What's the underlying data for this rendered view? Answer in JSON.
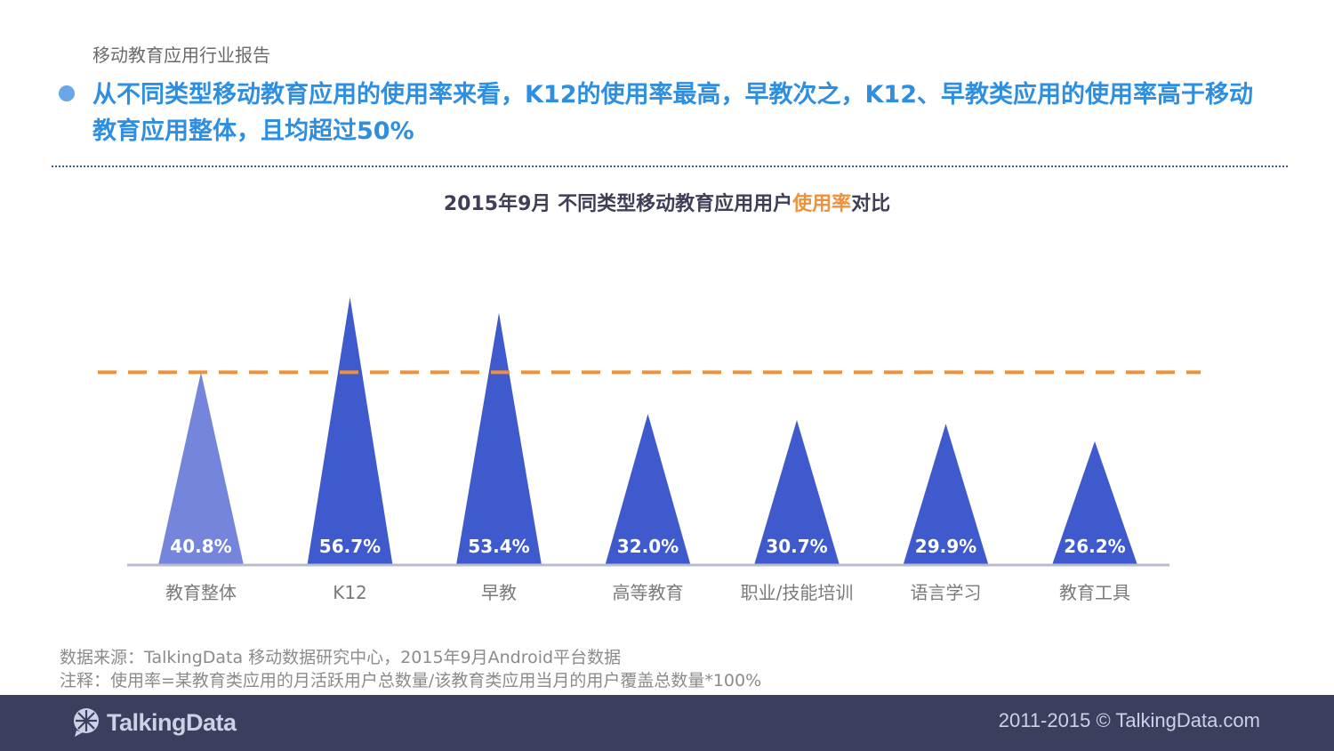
{
  "header": {
    "report_label": "移动教育应用行业报告",
    "headline": "从不同类型移动教育应用的使用率来看，K12的使用率最高，早教次之，K12、早教类应用的使用率高于移动教育应用整体，且均超过50%"
  },
  "chart_data": {
    "type": "bar",
    "shape": "triangle",
    "title_prefix": "2015年9月  不同类型移动教育应用用户",
    "title_highlight": "使用率",
    "title_suffix": "对比",
    "categories": [
      "教育整体",
      "K12",
      "早教",
      "高等教育",
      "职业/技能培训",
      "语言学习",
      "教育工具"
    ],
    "values": [
      40.8,
      56.7,
      53.4,
      32.0,
      30.7,
      29.9,
      26.2
    ],
    "value_labels": [
      "40.8%",
      "56.7%",
      "53.4%",
      "32.0%",
      "30.7%",
      "29.9%",
      "26.2%"
    ],
    "reference_line": 40.8,
    "ylim": [
      0,
      60
    ],
    "colors": {
      "overall_bar": "#7585dc",
      "bars": "#3f5acd",
      "reference_line": "#f0913a",
      "axis": "#b9bccf",
      "category_text": "#7a7a7a",
      "value_text": "#ffffff"
    }
  },
  "footer": {
    "source_line": "数据来源：TalkingData 移动数据研究中心，2015年9月Android平台数据",
    "note_line": "注释：使用率=某教育类应用的月活跃用户总数量/该教育类应用当月的用户覆盖总数量*100%",
    "logo_text": "TalkingData",
    "logo_icon": "talkingdata-logo-icon",
    "copyright": "2011-2015 © TalkingData.com"
  }
}
